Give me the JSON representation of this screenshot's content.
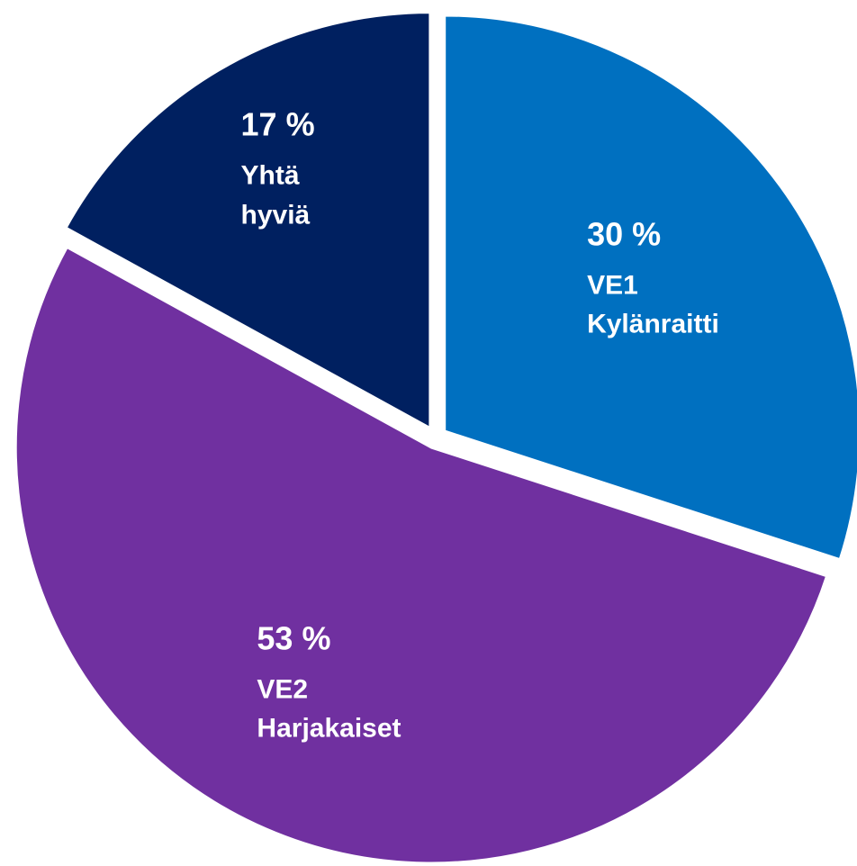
{
  "chart_data": {
    "type": "pie",
    "categories": [
      "VE1 Kylänraitti",
      "VE2 Harjakaiset",
      "Yhtä hyviä"
    ],
    "values": [
      30,
      53,
      17
    ],
    "value_labels": [
      "30 %",
      "53 %",
      "17 %"
    ],
    "colors": [
      "#0070c0",
      "#7030a0",
      "#002060"
    ]
  }
}
